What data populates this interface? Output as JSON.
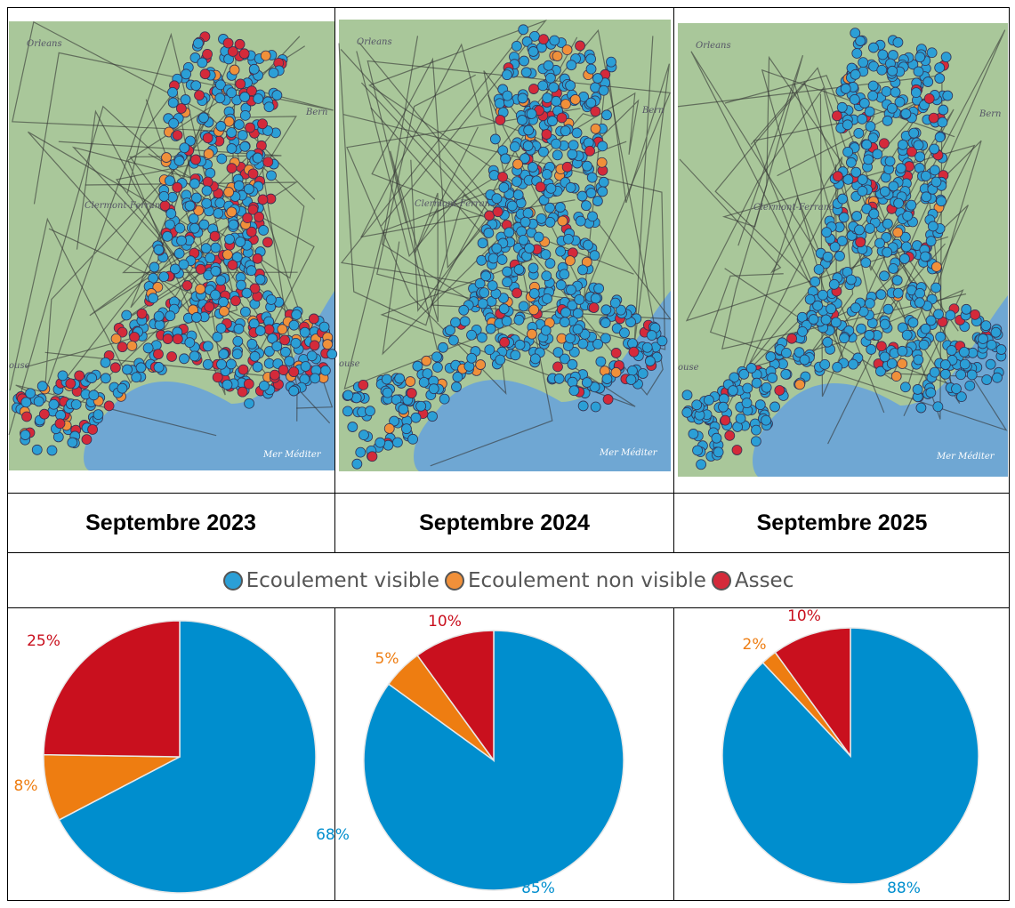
{
  "colors": {
    "Ecoulement visible": "#008ECE",
    "Ecoulement non visible": "#EE7D11",
    "Assec": "#C9101E"
  },
  "map_labels": {
    "city1": "Orleans",
    "city2": "Bern",
    "city3": "Clermont-Ferrand",
    "city4": "ouse",
    "sea": "Mer Méditer"
  },
  "legend": [
    "Ecoulement visible",
    "Ecoulement non visible",
    "Assec"
  ],
  "chart_data": [
    {
      "type": "pie",
      "title": "Septembre 2023",
      "categories": [
        "Ecoulement visible",
        "Ecoulement non visible",
        "Assec"
      ],
      "values": [
        68,
        8,
        25
      ],
      "labels": [
        "68%",
        "8%",
        "25%"
      ]
    },
    {
      "type": "pie",
      "title": "Septembre 2024",
      "categories": [
        "Ecoulement visible",
        "Ecoulement non visible",
        "Assec"
      ],
      "values": [
        85,
        5,
        10
      ],
      "labels": [
        "85%",
        "5%",
        "10%"
      ]
    },
    {
      "type": "pie",
      "title": "Septembre 2025",
      "categories": [
        "Ecoulement visible",
        "Ecoulement non visible",
        "Assec"
      ],
      "values": [
        88,
        2,
        10
      ],
      "labels": [
        "88%",
        "2%",
        "10%"
      ]
    }
  ]
}
